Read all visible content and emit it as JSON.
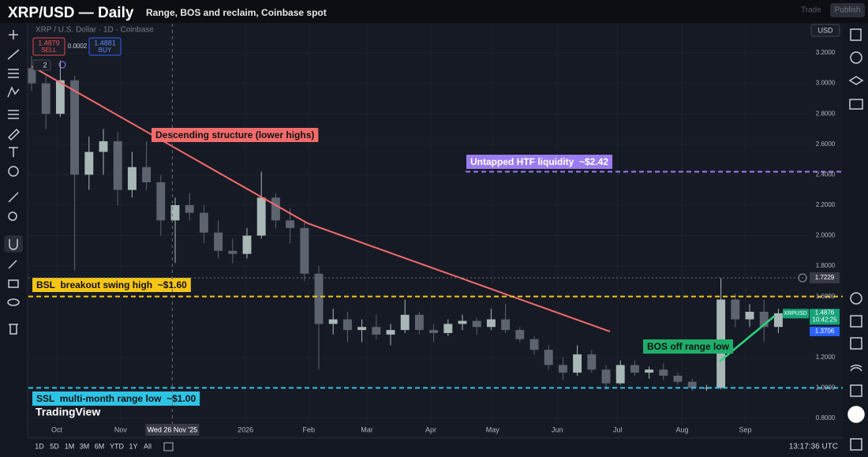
{
  "chart_data": {
    "type": "candlestick",
    "title": "XRP/USD — Daily",
    "subtitle": "Range, BOS and reclaim, Coinbase spot",
    "symbol": "XRP / U.S. Dollar · 1D · Coinbase",
    "open": [
      3.1,
      3.0,
      2.8,
      3.02,
      2.4,
      2.55,
      2.62,
      2.3,
      2.45,
      2.35,
      2.1,
      2.2,
      2.15,
      2.02,
      1.9,
      1.88,
      2.0,
      2.25,
      2.1,
      2.05,
      1.75,
      1.42,
      1.45,
      1.38,
      1.4,
      1.35,
      1.38,
      1.48,
      1.38,
      1.36,
      1.42,
      1.44,
      1.4,
      1.45,
      1.38,
      1.32,
      1.25,
      1.15,
      1.1,
      1.22,
      1.12,
      1.03,
      1.15,
      1.1,
      1.12,
      1.08,
      1.04,
      1.0,
      1.0,
      1.58,
      1.45,
      1.5,
      1.4
    ],
    "high": [
      3.18,
      3.05,
      3.15,
      3.05,
      2.65,
      2.7,
      2.68,
      2.55,
      2.62,
      2.4,
      2.25,
      2.28,
      2.2,
      2.1,
      1.98,
      2.05,
      2.42,
      2.28,
      2.18,
      2.1,
      1.8,
      1.52,
      1.5,
      1.45,
      1.48,
      1.42,
      1.58,
      1.5,
      1.42,
      1.45,
      1.48,
      1.46,
      1.52,
      1.55,
      1.4,
      1.34,
      1.28,
      1.2,
      1.28,
      1.25,
      1.15,
      1.18,
      1.18,
      1.14,
      1.16,
      1.1,
      1.06,
      1.02,
      1.72,
      1.62,
      1.55,
      1.58,
      1.52
    ],
    "low": [
      2.95,
      2.7,
      2.78,
      1.77,
      2.3,
      2.4,
      2.2,
      2.25,
      2.3,
      2.0,
      1.82,
      2.1,
      1.95,
      1.85,
      1.82,
      1.85,
      1.98,
      2.05,
      1.95,
      1.7,
      1.12,
      1.35,
      1.3,
      1.3,
      1.32,
      1.28,
      1.36,
      1.35,
      1.3,
      1.34,
      1.38,
      1.35,
      1.38,
      1.36,
      1.3,
      1.22,
      1.12,
      1.05,
      1.08,
      1.1,
      0.99,
      1.02,
      1.08,
      1.06,
      1.05,
      1.02,
      0.98,
      0.98,
      0.99,
      1.4,
      1.4,
      1.3,
      1.36
    ],
    "close": [
      3.0,
      2.8,
      3.02,
      2.4,
      2.55,
      2.62,
      2.3,
      2.45,
      2.35,
      2.1,
      2.2,
      2.15,
      2.02,
      1.9,
      1.88,
      2.0,
      2.25,
      2.1,
      2.05,
      1.75,
      1.42,
      1.45,
      1.38,
      1.4,
      1.35,
      1.38,
      1.48,
      1.38,
      1.36,
      1.42,
      1.44,
      1.4,
      1.45,
      1.38,
      1.32,
      1.25,
      1.15,
      1.1,
      1.22,
      1.12,
      1.03,
      1.15,
      1.1,
      1.12,
      1.08,
      1.04,
      1.0,
      1.0,
      1.58,
      1.45,
      1.5,
      1.4,
      1.49
    ],
    "up_color": "#a9b8b6",
    "down_color": "#5d6470",
    "xlim": [
      -0.22,
      54.12
    ],
    "xticks": [
      {
        "value": 1.76,
        "label": "Oct"
      },
      {
        "value": 6.2,
        "label": "Nov"
      },
      {
        "value": 14.9,
        "label": "2026"
      },
      {
        "value": 19.3,
        "label": "Feb"
      },
      {
        "value": 23.35,
        "label": "Mar"
      },
      {
        "value": 27.8,
        "label": "Apr"
      },
      {
        "value": 32.1,
        "label": "May"
      },
      {
        "value": 36.6,
        "label": "Jun"
      },
      {
        "value": 40.8,
        "label": "Jul"
      },
      {
        "value": 45.3,
        "label": "Aug"
      },
      {
        "value": 49.7,
        "label": "Sep"
      }
    ],
    "ylim": [
      0.7585,
      3.392
    ],
    "yticks": [
      {
        "value": 0.8,
        "label": "0.8000"
      },
      {
        "value": 1.0,
        "label": "1.0000"
      },
      {
        "value": 1.2,
        "label": "1.2000"
      },
      {
        "value": 1.6,
        "label": "1.6000"
      },
      {
        "value": 1.8,
        "label": "1.8000"
      },
      {
        "value": 2.0,
        "label": "2.0000"
      },
      {
        "value": 2.2,
        "label": "2.2000"
      },
      {
        "value": 2.4,
        "label": "2.4000"
      },
      {
        "value": 2.6,
        "label": "2.6000"
      },
      {
        "value": 2.8,
        "label": "2.8000"
      },
      {
        "value": 3.0,
        "label": "3.0000"
      },
      {
        "value": 3.2,
        "label": "3.2000"
      }
    ],
    "levels": [
      {
        "label": "Untapped HTF liquidity  ~$2.42",
        "value": 2.42,
        "color": "#9b7cf0"
      },
      {
        "label": "BSL  breakout swing high  ~$1.60",
        "value": 1.6,
        "color": "#f5c518"
      },
      {
        "label": "SSL  multi-month range low  ~$1.00",
        "value": 1.0,
        "color": "#2ec4e6"
      }
    ],
    "annotations": [
      {
        "text": "Descending structure (lower highs)",
        "color": "#f26b6b"
      },
      {
        "text": "BOS off range low",
        "color": "#1fae6a"
      }
    ],
    "crosshair": {
      "x": {
        "value": 9.8,
        "label": "Wed 26 Nov '25"
      },
      "y": 1.7229
    },
    "last_price": {
      "name": "XRPUSD",
      "value": 1.4876,
      "countdown": "10:42:25",
      "color": "#16a37a"
    },
    "price_marker": {
      "value": 1.3706,
      "color": "#2962ff"
    }
  },
  "ui": {
    "sell_price": "1.4879",
    "sell": "SELL",
    "spread": "0.0002",
    "buy_price": "1.4881",
    "buy": "BUY",
    "indicator_count": "2",
    "currency": "USD",
    "trade": "Trade",
    "publish": "Publish",
    "timeframes": [
      "1D",
      "5D",
      "1M",
      "3M",
      "6M",
      "YTD",
      "1Y",
      "All"
    ],
    "clock": "13:17:36 UTC",
    "brand": "TradingView"
  }
}
